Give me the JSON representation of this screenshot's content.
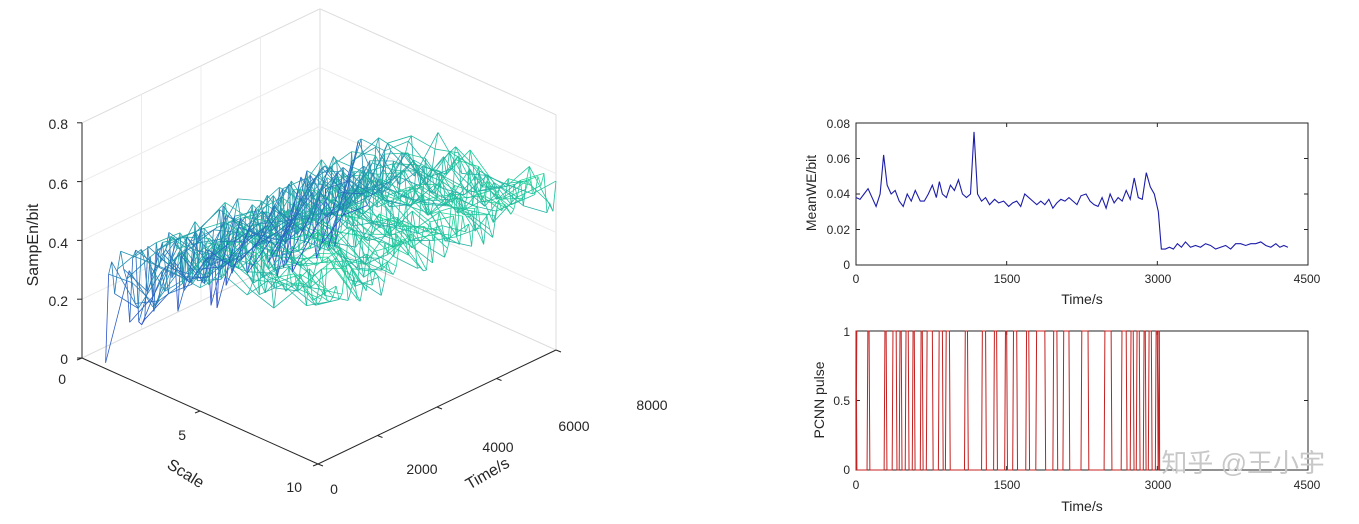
{
  "chart_data": [
    {
      "type": "surface-3d-mesh",
      "xlabel": "Time/s",
      "ylabel": "Scale",
      "zlabel": "SampEn/bit",
      "x_ticks": [
        "0",
        "2000",
        "4000",
        "6000",
        "8000"
      ],
      "y_ticks": [
        "0",
        "5",
        "10"
      ],
      "z_ticks": [
        "0",
        "0.2",
        "0.4",
        "0.6",
        "0.8"
      ],
      "xlim": [
        0,
        8000
      ],
      "ylim": [
        0,
        10
      ],
      "zlim": [
        0,
        0.8
      ],
      "colormap": [
        "#2c3ed0",
        "#1fd896"
      ],
      "scale_profile": [
        {
          "scale": 1,
          "sampen": 0.2
        },
        {
          "scale": 2,
          "sampen": 0.32
        },
        {
          "scale": 3,
          "sampen": 0.4
        },
        {
          "scale": 4,
          "sampen": 0.45
        },
        {
          "scale": 5,
          "sampen": 0.48
        },
        {
          "scale": 6,
          "sampen": 0.5
        },
        {
          "scale": 7,
          "sampen": 0.52
        },
        {
          "scale": 8,
          "sampen": 0.53
        },
        {
          "scale": 9,
          "sampen": 0.54
        },
        {
          "scale": 10,
          "sampen": 0.55
        }
      ],
      "grid": true
    },
    {
      "type": "line",
      "xlabel": "Time/s",
      "ylabel": "MeanWE/bit",
      "x_ticks": [
        "0",
        "1500",
        "3000",
        "4500"
      ],
      "y_ticks": [
        "0",
        "0.02",
        "0.04",
        "0.06",
        "0.08"
      ],
      "xlim": [
        0,
        4500
      ],
      "ylim": [
        0,
        0.08
      ],
      "color": "#1c1caa",
      "points": [
        [
          0,
          0.038
        ],
        [
          40,
          0.037
        ],
        [
          80,
          0.04
        ],
        [
          120,
          0.043
        ],
        [
          160,
          0.038
        ],
        [
          200,
          0.033
        ],
        [
          240,
          0.04
        ],
        [
          275,
          0.062
        ],
        [
          310,
          0.045
        ],
        [
          350,
          0.04
        ],
        [
          390,
          0.042
        ],
        [
          430,
          0.036
        ],
        [
          470,
          0.033
        ],
        [
          510,
          0.04
        ],
        [
          550,
          0.036
        ],
        [
          590,
          0.042
        ],
        [
          640,
          0.036
        ],
        [
          680,
          0.036
        ],
        [
          720,
          0.04
        ],
        [
          760,
          0.045
        ],
        [
          800,
          0.038
        ],
        [
          830,
          0.047
        ],
        [
          860,
          0.04
        ],
        [
          900,
          0.038
        ],
        [
          940,
          0.045
        ],
        [
          980,
          0.042
        ],
        [
          1020,
          0.048
        ],
        [
          1060,
          0.04
        ],
        [
          1100,
          0.038
        ],
        [
          1140,
          0.04
        ],
        [
          1175,
          0.075
        ],
        [
          1210,
          0.04
        ],
        [
          1250,
          0.036
        ],
        [
          1290,
          0.038
        ],
        [
          1330,
          0.034
        ],
        [
          1380,
          0.037
        ],
        [
          1420,
          0.035
        ],
        [
          1470,
          0.036
        ],
        [
          1520,
          0.033
        ],
        [
          1560,
          0.035
        ],
        [
          1600,
          0.036
        ],
        [
          1640,
          0.033
        ],
        [
          1680,
          0.04
        ],
        [
          1720,
          0.038
        ],
        [
          1760,
          0.036
        ],
        [
          1800,
          0.034
        ],
        [
          1840,
          0.036
        ],
        [
          1880,
          0.034
        ],
        [
          1920,
          0.037
        ],
        [
          1960,
          0.032
        ],
        [
          2000,
          0.035
        ],
        [
          2040,
          0.037
        ],
        [
          2080,
          0.036
        ],
        [
          2120,
          0.038
        ],
        [
          2160,
          0.036
        ],
        [
          2200,
          0.034
        ],
        [
          2240,
          0.039
        ],
        [
          2290,
          0.04
        ],
        [
          2330,
          0.036
        ],
        [
          2370,
          0.034
        ],
        [
          2410,
          0.033
        ],
        [
          2450,
          0.038
        ],
        [
          2490,
          0.032
        ],
        [
          2530,
          0.04
        ],
        [
          2570,
          0.035
        ],
        [
          2610,
          0.038
        ],
        [
          2650,
          0.036
        ],
        [
          2690,
          0.042
        ],
        [
          2730,
          0.037
        ],
        [
          2770,
          0.049
        ],
        [
          2810,
          0.038
        ],
        [
          2850,
          0.037
        ],
        [
          2890,
          0.052
        ],
        [
          2930,
          0.044
        ],
        [
          2970,
          0.04
        ],
        [
          3010,
          0.03
        ],
        [
          3040,
          0.009
        ],
        [
          3080,
          0.009
        ],
        [
          3120,
          0.01
        ],
        [
          3160,
          0.009
        ],
        [
          3200,
          0.012
        ],
        [
          3240,
          0.01
        ],
        [
          3280,
          0.013
        ],
        [
          3330,
          0.01
        ],
        [
          3380,
          0.011
        ],
        [
          3430,
          0.01
        ],
        [
          3480,
          0.012
        ],
        [
          3530,
          0.011
        ],
        [
          3580,
          0.009
        ],
        [
          3630,
          0.01
        ],
        [
          3680,
          0.011
        ],
        [
          3730,
          0.009
        ],
        [
          3780,
          0.012
        ],
        [
          3830,
          0.012
        ],
        [
          3880,
          0.011
        ],
        [
          3930,
          0.012
        ],
        [
          3980,
          0.012
        ],
        [
          4030,
          0.013
        ],
        [
          4080,
          0.011
        ],
        [
          4130,
          0.01
        ],
        [
          4180,
          0.012
        ],
        [
          4220,
          0.01
        ],
        [
          4260,
          0.011
        ],
        [
          4300,
          0.01
        ]
      ]
    },
    {
      "type": "line",
      "xlabel": "Time/s",
      "ylabel": "PCNN pulse",
      "x_ticks": [
        "0",
        "1500",
        "3000",
        "4500"
      ],
      "y_ticks": [
        "0",
        "0.5",
        "1"
      ],
      "xlim": [
        0,
        4500
      ],
      "ylim": [
        0,
        1
      ],
      "color": "#c42020",
      "pulse_pairs": [
        [
          0,
          1
        ],
        [
          110,
          130
        ],
        [
          280,
          300
        ],
        [
          360,
          400
        ],
        [
          430,
          450
        ],
        [
          490,
          520
        ],
        [
          560,
          580
        ],
        [
          640,
          660
        ],
        [
          700,
          760
        ],
        [
          820,
          860
        ],
        [
          890,
          930
        ],
        [
          1080,
          1110
        ],
        [
          1250,
          1290
        ],
        [
          1370,
          1400
        ],
        [
          1480,
          1500
        ],
        [
          1560,
          1600
        ],
        [
          1690,
          1720
        ],
        [
          1790,
          1880
        ],
        [
          1960,
          2000
        ],
        [
          2060,
          2120
        ],
        [
          2240,
          2310
        ],
        [
          2470,
          2540
        ],
        [
          2640,
          2690
        ],
        [
          2730,
          2760
        ],
        [
          2790,
          2820
        ],
        [
          2860,
          2880
        ],
        [
          2910,
          2940
        ],
        [
          2980,
          3000
        ],
        [
          3010,
          3015
        ]
      ],
      "pulse_end": 3020
    }
  ],
  "watermark": "知乎 @王小宇"
}
